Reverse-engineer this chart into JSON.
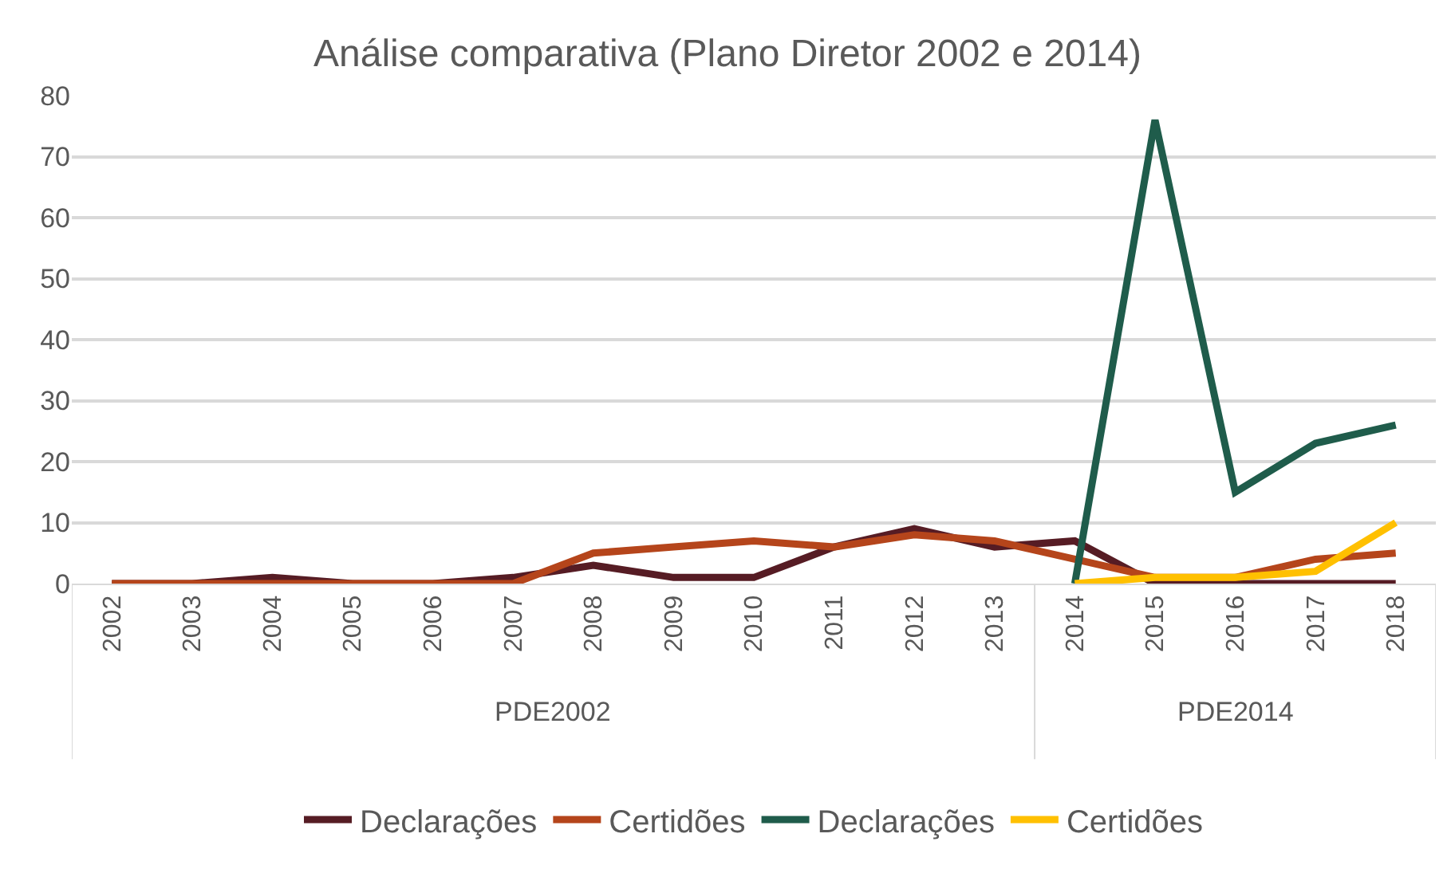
{
  "chart_data": {
    "type": "line",
    "title": "Análise comparativa (Plano Diretor 2002 e 2014)",
    "categories": [
      "2002",
      "2003",
      "2004",
      "2005",
      "2006",
      "2007",
      "2008",
      "2009",
      "2010",
      "2011",
      "2012",
      "2013",
      "2014",
      "2015",
      "2016",
      "2017",
      "2018"
    ],
    "series": [
      {
        "name": "Declarações",
        "color": "#561c24",
        "values": [
          0,
          0,
          1,
          0,
          0,
          1,
          3,
          1,
          1,
          6,
          9,
          6,
          7,
          0,
          0,
          0,
          0
        ]
      },
      {
        "name": "Certidões",
        "color": "#b5451b",
        "values": [
          0,
          0,
          0,
          0,
          0,
          0,
          5,
          6,
          7,
          6,
          8,
          7,
          4,
          1,
          1,
          4,
          5
        ]
      },
      {
        "name": "Declarações",
        "color": "#1f5c4b",
        "values": [
          null,
          null,
          null,
          null,
          null,
          null,
          null,
          null,
          null,
          null,
          null,
          null,
          0,
          76,
          15,
          23,
          26
        ]
      },
      {
        "name": "Certidões",
        "color": "#ffc000",
        "values": [
          null,
          null,
          null,
          null,
          null,
          null,
          null,
          null,
          null,
          null,
          null,
          null,
          0,
          1,
          1,
          2,
          10
        ]
      }
    ],
    "annotations": [
      "PDE2002",
      "PDE2014"
    ],
    "ylim": [
      0,
      80
    ],
    "yticks": [
      0,
      10,
      20,
      30,
      40,
      50,
      60,
      70,
      80
    ],
    "grid": "y",
    "legend": "bottom",
    "marker": "none",
    "line_style": "solid"
  }
}
